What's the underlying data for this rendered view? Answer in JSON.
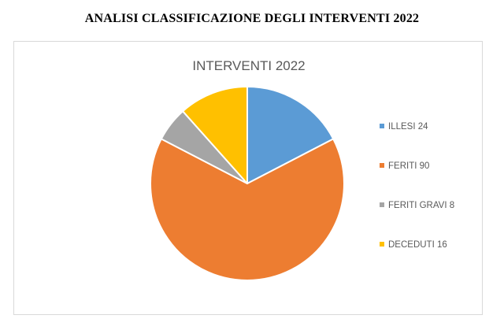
{
  "page": {
    "heading": "ANALISI CLASSIFICAZIONE DEGLI INTERVENTI 2022"
  },
  "chart_data": {
    "type": "pie",
    "title": "INTERVENTI 2022",
    "legend_position": "right",
    "categories": [
      "ILLESI",
      "FERITI",
      "FERITI GRAVI",
      "DECEDUTI"
    ],
    "values": [
      24,
      90,
      8,
      16
    ],
    "legend_labels": [
      "ILLESI 24",
      "FERITI 90",
      "FERITI GRAVI 8",
      "DECEDUTI 16"
    ],
    "colors": [
      "#5B9BD5",
      "#ED7D31",
      "#A5A5A5",
      "#FFC000"
    ],
    "start_angle": "12 o'clock",
    "direction": "clockwise"
  }
}
